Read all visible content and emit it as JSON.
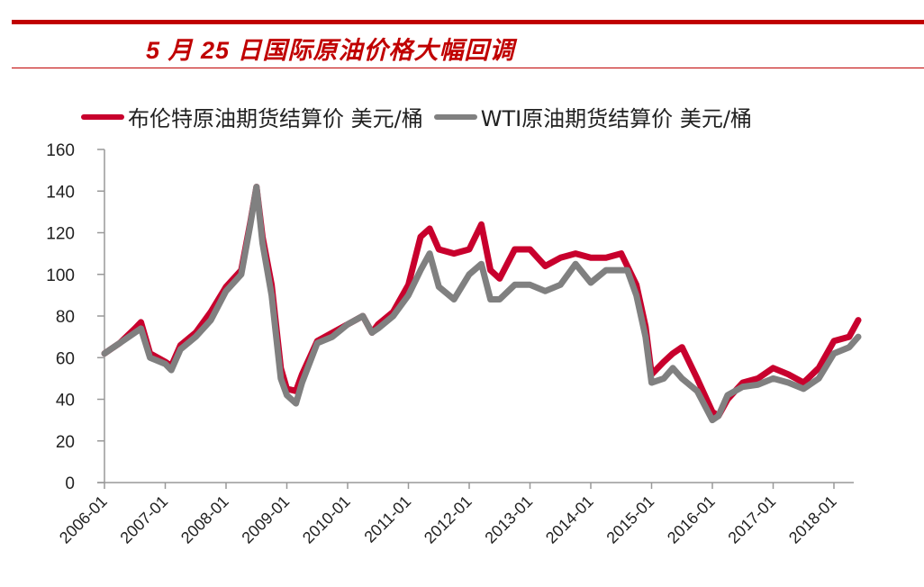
{
  "header": {
    "title": "5 月 25 日国际原油价格大幅回调"
  },
  "legend": {
    "items": [
      {
        "label": "布伦特原油期货结算价 美元/桶",
        "color": "#c8002d"
      },
      {
        "label": "WTI原油期货结算价 美元/桶",
        "color": "#808080"
      }
    ]
  },
  "chart_data": {
    "type": "line",
    "title": "5 月 25 日国际原油价格大幅回调",
    "xlabel": "",
    "ylabel": "美元/桶",
    "ylim": [
      0,
      160
    ],
    "yticks": [
      0,
      20,
      40,
      60,
      80,
      100,
      120,
      140,
      160
    ],
    "xticks": [
      "2006-01",
      "2007-01",
      "2008-01",
      "2009-01",
      "2010-01",
      "2011-01",
      "2012-01",
      "2013-01",
      "2014-01",
      "2015-01",
      "2016-01",
      "2017-01",
      "2018-01"
    ],
    "grid": false,
    "legend_position": "top",
    "x": [
      2006.0,
      2006.25,
      2006.5,
      2006.6,
      2006.75,
      2007.0,
      2007.1,
      2007.25,
      2007.5,
      2007.75,
      2008.0,
      2008.25,
      2008.4,
      2008.5,
      2008.6,
      2008.75,
      2008.9,
      2009.0,
      2009.15,
      2009.25,
      2009.5,
      2009.75,
      2010.0,
      2010.25,
      2010.4,
      2010.5,
      2010.75,
      2011.0,
      2011.2,
      2011.35,
      2011.5,
      2011.75,
      2012.0,
      2012.2,
      2012.35,
      2012.5,
      2012.75,
      2013.0,
      2013.25,
      2013.5,
      2013.75,
      2014.0,
      2014.25,
      2014.5,
      2014.6,
      2014.75,
      2014.9,
      2015.0,
      2015.2,
      2015.35,
      2015.5,
      2015.75,
      2016.0,
      2016.1,
      2016.25,
      2016.5,
      2016.75,
      2017.0,
      2017.25,
      2017.5,
      2017.75,
      2018.0,
      2018.25,
      2018.4
    ],
    "series": [
      {
        "name": "布伦特原油期货结算价 美元/桶",
        "values": [
          62,
          67,
          74,
          77,
          62,
          58,
          56,
          66,
          72,
          82,
          94,
          102,
          125,
          142,
          118,
          95,
          55,
          45,
          44,
          52,
          68,
          72,
          76,
          80,
          72,
          76,
          82,
          95,
          118,
          122,
          112,
          110,
          112,
          124,
          102,
          98,
          112,
          112,
          104,
          108,
          110,
          108,
          108,
          110,
          104,
          95,
          75,
          52,
          58,
          62,
          65,
          50,
          34,
          32,
          40,
          48,
          50,
          55,
          52,
          48,
          55,
          68,
          70,
          78
        ],
        "color": "#c8002d"
      },
      {
        "name": "WTI原油期货结算价 美元/桶",
        "values": [
          62,
          67,
          72,
          74,
          60,
          57,
          54,
          64,
          70,
          78,
          92,
          100,
          124,
          142,
          115,
          90,
          50,
          42,
          38,
          48,
          67,
          70,
          76,
          80,
          72,
          74,
          80,
          90,
          102,
          110,
          94,
          88,
          100,
          105,
          88,
          88,
          95,
          95,
          92,
          95,
          105,
          96,
          102,
          102,
          102,
          90,
          70,
          48,
          50,
          55,
          50,
          44,
          30,
          32,
          42,
          46,
          47,
          50,
          48,
          45,
          50,
          62,
          65,
          70
        ],
        "color": "#808080"
      }
    ]
  }
}
